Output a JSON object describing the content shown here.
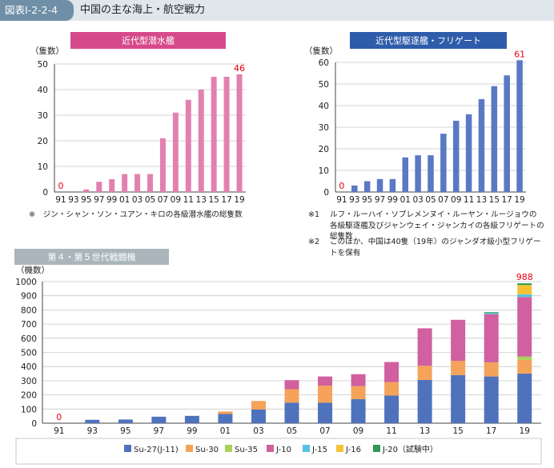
{
  "figure": {
    "tag": "図表Ⅰ-2-2-4",
    "title": "中国の主な海上・航空戦力"
  },
  "chart_data": [
    {
      "type": "bar",
      "title": "近代型潜水艦",
      "title_color": "#d64a8b",
      "ylabel": "（隻数）",
      "ylim": [
        0,
        50
      ],
      "yticks": [
        0,
        10,
        20,
        30,
        40,
        50
      ],
      "categories": [
        "91",
        "93",
        "95",
        "97",
        "99",
        "01",
        "03",
        "05",
        "07",
        "09",
        "11",
        "13",
        "15",
        "17",
        "19"
      ],
      "values": [
        0,
        0,
        1,
        4,
        5,
        7,
        7,
        7,
        21,
        31,
        36,
        40,
        45,
        45,
        46
      ],
      "bar_color": "#e281b0",
      "annotations": [
        {
          "category": "91",
          "text": "0"
        },
        {
          "category": "19",
          "text": "46"
        }
      ],
      "annotation_color": "#e60012",
      "note": "※　ジン・シャン・ソン・ユアン・キロの各級潜水艦の総隻数"
    },
    {
      "type": "bar",
      "title": "近代型駆逐艦・フリゲート",
      "title_color": "#2e5caa",
      "ylabel": "（隻数）",
      "ylim": [
        0,
        60
      ],
      "yticks": [
        0,
        10,
        20,
        30,
        40,
        50,
        60
      ],
      "categories": [
        "91",
        "93",
        "95",
        "97",
        "99",
        "01",
        "03",
        "05",
        "07",
        "09",
        "11",
        "13",
        "15",
        "17",
        "19"
      ],
      "values": [
        0,
        3,
        5,
        6,
        6,
        16,
        17,
        17,
        27,
        33,
        36,
        43,
        49,
        54,
        61
      ],
      "bar_color": "#5a78c4",
      "annotations": [
        {
          "category": "91",
          "text": "0"
        },
        {
          "category": "19",
          "text": "61"
        }
      ],
      "annotation_color": "#e60012",
      "notes": [
        {
          "mark": "※1",
          "text": "ルフ・ルーハイ・ソブレメンヌイ・ルーヤン・ルージョウの各級駆逐艦及びジャンウェイ・ジャンカイの各級フリゲートの総隻数"
        },
        {
          "mark": "※2",
          "text": "このほか、中国は40隻（19年）のジャンダオ級小型フリゲートを保有"
        }
      ]
    },
    {
      "type": "bar",
      "stacked": true,
      "title": "第４・第５世代戦闘機",
      "title_color": "#aab6bc",
      "ylabel": "（機数）",
      "ylim": [
        0,
        1000
      ],
      "yticks": [
        0,
        100,
        200,
        300,
        400,
        500,
        600,
        700,
        800,
        900,
        1000
      ],
      "categories": [
        "91",
        "93",
        "95",
        "97",
        "99",
        "01",
        "03",
        "05",
        "07",
        "09",
        "11",
        "13",
        "15",
        "17",
        "19"
      ],
      "series": [
        {
          "name": "Su-27(J-11)",
          "color": "#4f72bd",
          "values": [
            0,
            24,
            26,
            46,
            52,
            65,
            97,
            145,
            145,
            170,
            195,
            305,
            340,
            330,
            350
          ]
        },
        {
          "name": "Su-30",
          "color": "#f5a25a",
          "values": [
            0,
            0,
            0,
            0,
            0,
            18,
            60,
            95,
            120,
            92,
            95,
            100,
            100,
            100,
            97
          ]
        },
        {
          "name": "Su-35",
          "color": "#a9d15a",
          "values": [
            0,
            0,
            0,
            0,
            0,
            0,
            0,
            0,
            0,
            0,
            0,
            0,
            0,
            0,
            24
          ]
        },
        {
          "name": "J-10",
          "color": "#d0609f",
          "values": [
            0,
            0,
            0,
            0,
            0,
            0,
            0,
            64,
            65,
            84,
            142,
            265,
            290,
            340,
            420
          ]
        },
        {
          "name": "J-15",
          "color": "#56c2de",
          "values": [
            0,
            0,
            0,
            0,
            0,
            0,
            0,
            0,
            0,
            0,
            0,
            0,
            0,
            8,
            20
          ]
        },
        {
          "name": "J-16",
          "color": "#f6c233",
          "values": [
            0,
            0,
            0,
            0,
            0,
            0,
            0,
            0,
            0,
            0,
            0,
            0,
            0,
            0,
            65
          ]
        },
        {
          "name": "J-20（試験中）",
          "color": "#2f9a52",
          "values": [
            0,
            0,
            0,
            0,
            0,
            0,
            0,
            0,
            0,
            0,
            0,
            0,
            0,
            6,
            12
          ]
        }
      ],
      "annotations": [
        {
          "category": "91",
          "text": "0"
        },
        {
          "category": "19",
          "text": "988"
        }
      ],
      "annotation_color": "#e60012"
    }
  ]
}
